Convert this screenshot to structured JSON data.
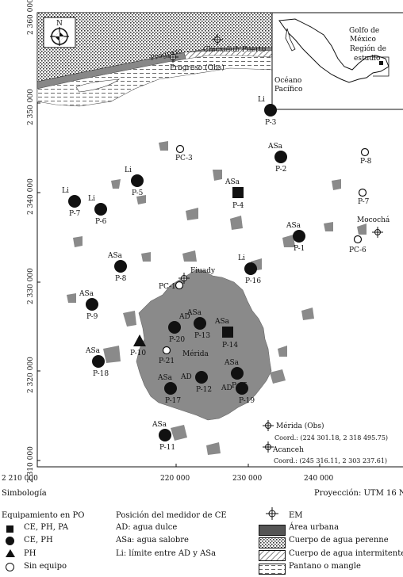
{
  "axes": {
    "y_ticks": [
      "2 360 000",
      "2 350 000",
      "2 340 000",
      "2 330 000",
      "2 320 000",
      "2 310 000"
    ],
    "x_ticks": [
      "2 210 000",
      "220 000",
      "230 000",
      "240 000"
    ]
  },
  "north_label": "N",
  "inset": {
    "gulf": "Golfo de",
    "gulf2": "México",
    "region": "Región de",
    "region2": "estudio",
    "ocean": "Océano",
    "ocean2": "Pacífico"
  },
  "places": {
    "progreso": "Progreso",
    "progreso_obs": "Progreso (Obs)",
    "chicxulub": "Chicxulub Puerto",
    "fiuady": "Fiuady",
    "merida": "Mérida",
    "mococha": "Mocochá",
    "merida_obs": "Mérida (Obs)",
    "merida_coord": "Coord.: (224 301.18, 2 318 495.75)",
    "acanceh": "Acanceh",
    "acanceh_coord": "Coord.: (245 316.11, 2 303 237.61)"
  },
  "points": [
    {
      "id": "P-1",
      "class": "ASa",
      "type": "circle"
    },
    {
      "id": "P-2",
      "class": "ASa",
      "type": "circle"
    },
    {
      "id": "P-3",
      "class": "Li",
      "type": "circle"
    },
    {
      "id": "P-4",
      "class": "ASa",
      "type": "square"
    },
    {
      "id": "P-5",
      "class": "Li",
      "type": "circle"
    },
    {
      "id": "P-6",
      "class": "Li",
      "type": "circle"
    },
    {
      "id": "P-7",
      "class": "Li",
      "type": "circle"
    },
    {
      "id": "P-8",
      "class": "ASa",
      "type": "circle"
    },
    {
      "id": "P-9",
      "class": "ASa",
      "type": "circle"
    },
    {
      "id": "P-10",
      "class": "",
      "type": "triangle"
    },
    {
      "id": "P-11",
      "class": "ASa",
      "type": "circle"
    },
    {
      "id": "P-12",
      "class": "AD",
      "type": "circle"
    },
    {
      "id": "P-13",
      "class": "ASa",
      "type": "circle"
    },
    {
      "id": "P-14",
      "class": "ASa",
      "type": "square"
    },
    {
      "id": "P-15",
      "class": "ASa",
      "type": "circle"
    },
    {
      "id": "P-16",
      "class": "Li",
      "type": "circle"
    },
    {
      "id": "P-17",
      "class": "ASa",
      "type": "circle"
    },
    {
      "id": "P-18",
      "class": "ASa",
      "type": "circle"
    },
    {
      "id": "P-19",
      "class": "AD",
      "type": "circle"
    },
    {
      "id": "P-20",
      "class": "AD",
      "type": "circle"
    },
    {
      "id": "P-21",
      "class": "",
      "type": "open"
    },
    {
      "id": "PC-1",
      "class": "",
      "type": "open"
    },
    {
      "id": "PC-3",
      "class": "",
      "type": "open"
    },
    {
      "id": "PC-6",
      "class": "",
      "type": "open"
    },
    {
      "id": "P-7b",
      "label": "P-7",
      "class": "",
      "type": "open"
    },
    {
      "id": "P-8b",
      "label": "P-8",
      "class": "",
      "type": "open"
    }
  ],
  "legend": {
    "simbologia": "Simbología",
    "proyeccion": "Proyección: UTM 16 N",
    "equip_title": "Equipamiento en PO",
    "equip": [
      "CE, PH, PA",
      "CE, PH",
      "PH",
      "Sin equipo"
    ],
    "pos_title": "Posición del medidor de CE",
    "pos": [
      "AD: agua dulce",
      "ASa: agua salobre",
      "Li: límite entre AD y ASa"
    ],
    "em": "EM",
    "areas": [
      "Área urbana",
      "Cuerpo de agua perenne",
      "Cuerpo de agua intermitente",
      "Pantano o mangle"
    ]
  }
}
